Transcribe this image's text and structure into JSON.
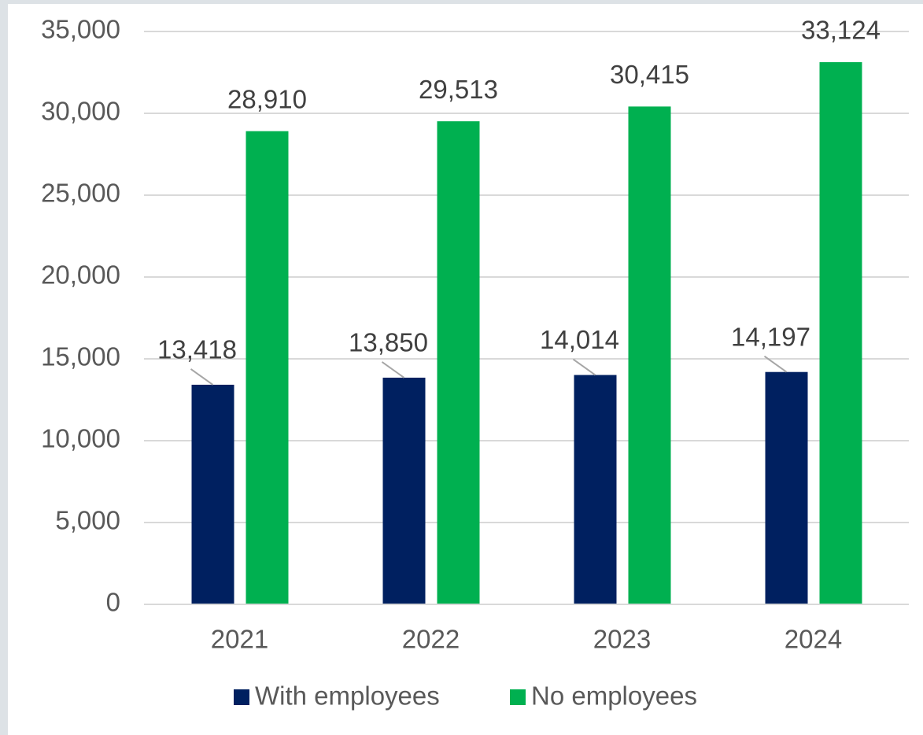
{
  "chart_data": {
    "type": "bar",
    "categories": [
      "2021",
      "2022",
      "2023",
      "2024"
    ],
    "series": [
      {
        "name": "With employees",
        "color": "#002060",
        "values": [
          13418,
          13850,
          14014,
          14197
        ],
        "value_labels": [
          "13,418",
          "13,850",
          "14,014",
          "14,197"
        ]
      },
      {
        "name": "No employees",
        "color": "#00b050",
        "values": [
          28910,
          29513,
          30415,
          33124
        ],
        "value_labels": [
          "28,910",
          "29,513",
          "30,415",
          "33,124"
        ]
      }
    ],
    "ylim": [
      0,
      35000
    ],
    "yticks": [
      0,
      {
        "value": 5000,
        "label": "5,000"
      },
      {
        "value": 10000,
        "label": "10,000"
      },
      {
        "value": 15000,
        "label": "15,000"
      },
      {
        "value": 20000,
        "label": "20,000"
      },
      {
        "value": 25000,
        "label": "25,000"
      },
      {
        "value": 30000,
        "label": "30,000"
      },
      {
        "value": 35000,
        "label": "35,000"
      }
    ],
    "grid": true,
    "legend": "bottom"
  }
}
